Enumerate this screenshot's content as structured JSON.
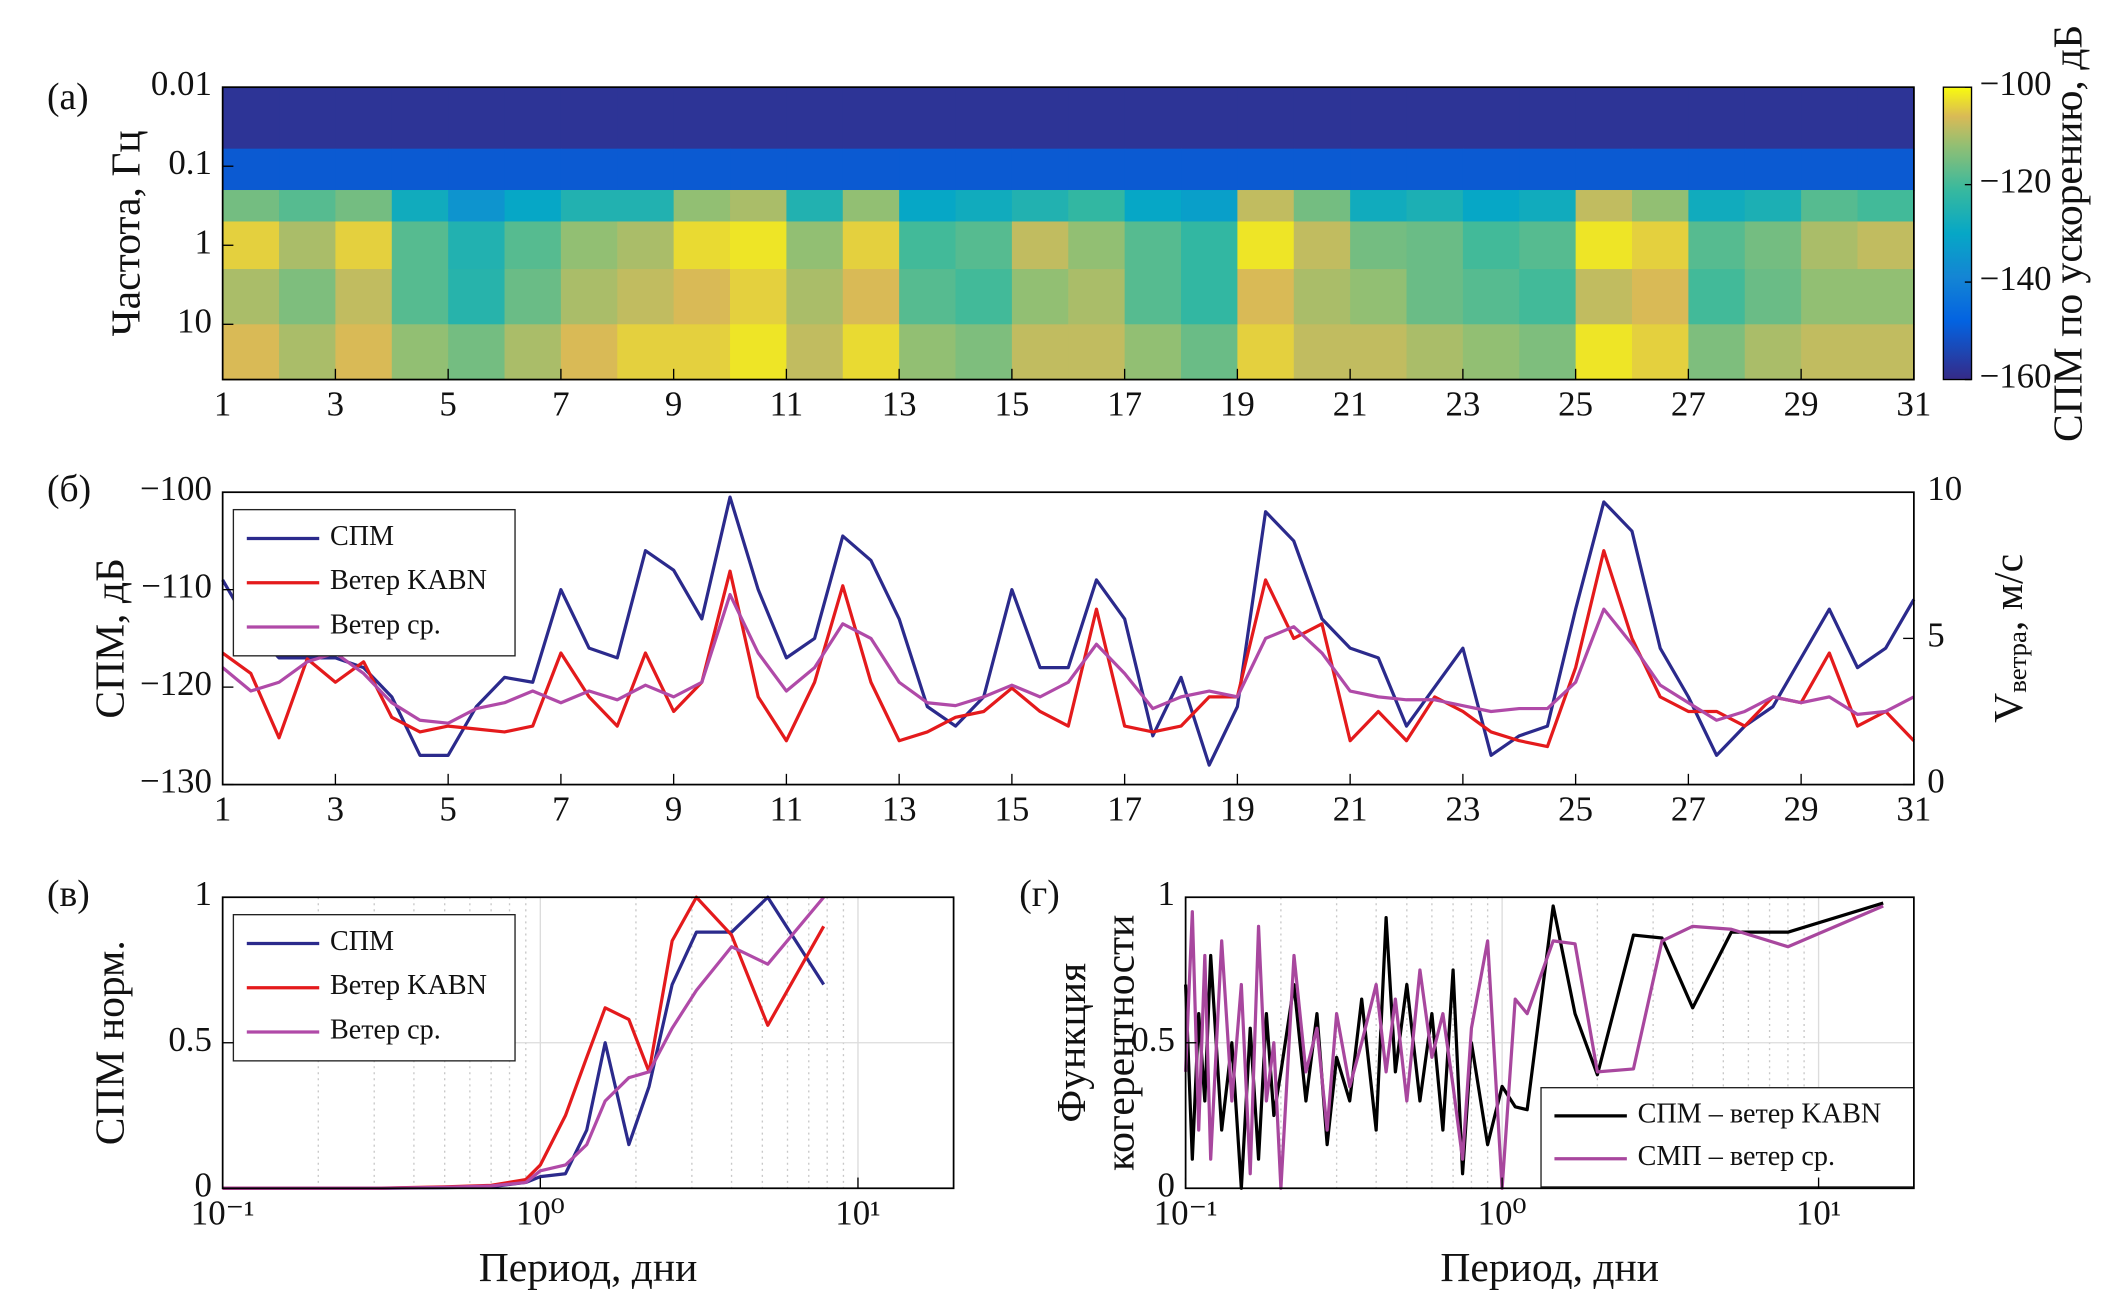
{
  "chart_data": [
    {
      "type": "heatmap",
      "panel_label": "(а)",
      "ylabel": "Частота, Гц",
      "x_edges": [
        1,
        2,
        3,
        4,
        5,
        6,
        7,
        8,
        9,
        10,
        11,
        12,
        13,
        14,
        15,
        16,
        17,
        18,
        19,
        20,
        21,
        22,
        23,
        24,
        25,
        26,
        27,
        28,
        29,
        30,
        31
      ],
      "xlim": [
        1,
        31
      ],
      "xticks": [
        1,
        3,
        5,
        7,
        9,
        11,
        13,
        15,
        17,
        19,
        21,
        23,
        25,
        27,
        29,
        31
      ],
      "y_edges": [
        0.01,
        0.06,
        0.2,
        0.5,
        2,
        10,
        50
      ],
      "ylim": [
        0.01,
        50
      ],
      "yticks": [
        0.01,
        0.1,
        1,
        10
      ],
      "yscale": "log",
      "y_direction": "reversed",
      "z": [
        [
          -158,
          -158,
          -158,
          -158,
          -158,
          -158,
          -158,
          -158,
          -158,
          -158,
          -158,
          -158,
          -158,
          -158,
          -158,
          -158,
          -158,
          -158,
          -158,
          -158,
          -158,
          -158,
          -158,
          -158,
          -158,
          -158,
          -158,
          -158,
          -158,
          -158
        ],
        [
          -150,
          -150,
          -150,
          -150,
          -150,
          -150,
          -150,
          -150,
          -150,
          -150,
          -150,
          -150,
          -150,
          -150,
          -150,
          -150,
          -150,
          -150,
          -150,
          -150,
          -150,
          -150,
          -150,
          -150,
          -150,
          -150,
          -150,
          -150,
          -150,
          -150
        ],
        [
          -115,
          -118,
          -115,
          -128,
          -135,
          -130,
          -125,
          -125,
          -112,
          -110,
          -125,
          -112,
          -130,
          -128,
          -125,
          -122,
          -130,
          -132,
          -108,
          -115,
          -128,
          -126,
          -130,
          -128,
          -108,
          -112,
          -128,
          -126,
          -118,
          -120
        ],
        [
          -104,
          -110,
          -104,
          -118,
          -125,
          -118,
          -112,
          -110,
          -103,
          -102,
          -112,
          -104,
          -120,
          -118,
          -108,
          -112,
          -118,
          -122,
          -102,
          -108,
          -115,
          -116,
          -120,
          -118,
          -102,
          -104,
          -118,
          -115,
          -110,
          -108
        ],
        [
          -110,
          -114,
          -108,
          -118,
          -124,
          -116,
          -110,
          -108,
          -106,
          -104,
          -110,
          -106,
          -118,
          -120,
          -112,
          -110,
          -118,
          -122,
          -106,
          -110,
          -112,
          -116,
          -118,
          -120,
          -108,
          -106,
          -120,
          -116,
          -112,
          -112
        ],
        [
          -106,
          -110,
          -106,
          -112,
          -115,
          -110,
          -106,
          -104,
          -104,
          -102,
          -108,
          -103,
          -112,
          -114,
          -108,
          -108,
          -112,
          -116,
          -104,
          -108,
          -108,
          -110,
          -112,
          -114,
          -102,
          -104,
          -114,
          -110,
          -108,
          -108
        ]
      ],
      "zlim": [
        -160,
        -100
      ],
      "zticks": [
        {
          "value": -100,
          "label": "−100"
        },
        {
          "value": -120,
          "label": "−120"
        },
        {
          "value": -140,
          "label": "−140"
        },
        {
          "value": -160,
          "label": "−160"
        }
      ],
      "colorbar_label": "СПМ по ускорению, дБ",
      "colormap": "parula"
    },
    {
      "type": "line",
      "panel_label": "(б)",
      "ylabel": "СПМ, дБ",
      "y2label": [
        "V",
        "ветра",
        ", м/с"
      ],
      "x": [
        1,
        1.5,
        2,
        2.5,
        3,
        3.5,
        4,
        4.5,
        5,
        5.5,
        6,
        6.5,
        7,
        7.5,
        8,
        8.5,
        9,
        9.5,
        10,
        10.5,
        11,
        11.5,
        12,
        12.5,
        13,
        13.5,
        14,
        14.5,
        15,
        15.5,
        16,
        16.5,
        17,
        17.5,
        18,
        18.5,
        19,
        19.5,
        20,
        20.5,
        21,
        21.5,
        22,
        22.5,
        23,
        23.5,
        24,
        24.5,
        25,
        25.5,
        26,
        26.5,
        27,
        27.5,
        28,
        28.5,
        29,
        29.5,
        30,
        30.5,
        31
      ],
      "xlim": [
        1,
        31
      ],
      "xticks": [
        1,
        3,
        5,
        7,
        9,
        11,
        13,
        15,
        17,
        19,
        21,
        23,
        25,
        27,
        29,
        31
      ],
      "ylim": [
        -130,
        -100
      ],
      "yticks": [
        {
          "value": -100,
          "label": "−100"
        },
        {
          "value": -110,
          "label": "−110"
        },
        {
          "value": -120,
          "label": "−120"
        },
        {
          "value": -130,
          "label": "−130"
        }
      ],
      "y2lim": [
        0,
        10
      ],
      "y2ticks": [
        0,
        5,
        10
      ],
      "legend": "upper left",
      "series": [
        {
          "name": "СПМ",
          "color": "#2b2a8c",
          "values": [
            -109,
            -114,
            -117,
            -117,
            -117,
            -118,
            -121,
            -127,
            -127,
            -122,
            -119,
            -119.5,
            -110,
            -116,
            -117,
            -106,
            -108,
            -113,
            -100.5,
            -110,
            -117,
            -115,
            -104.5,
            -107,
            -113,
            -122,
            -124,
            -121,
            -110,
            -118,
            -118,
            -109,
            -113,
            -125,
            -119,
            -128,
            -122,
            -102,
            -105,
            -113,
            -116,
            -117,
            -124,
            -120,
            -116,
            -127,
            -125,
            -124,
            -112,
            -101,
            -104,
            -116,
            -121,
            -127,
            -124,
            -122,
            -117,
            -112,
            -118,
            -116,
            -111
          ]
        },
        {
          "name": "Ветер KABN",
          "color": "#e41a1c",
          "axis": "y2",
          "values": [
            4.5,
            3.8,
            1.6,
            4.3,
            3.5,
            4.2,
            2.3,
            1.8,
            2.0,
            1.9,
            1.8,
            2.0,
            4.5,
            3.0,
            2.0,
            4.5,
            2.5,
            3.5,
            7.3,
            3.0,
            1.5,
            3.5,
            6.8,
            3.5,
            1.5,
            1.8,
            2.3,
            2.5,
            3.3,
            2.5,
            2.0,
            6.0,
            2.0,
            1.8,
            2.0,
            3.0,
            3.0,
            7.0,
            5.0,
            5.5,
            1.5,
            2.5,
            1.5,
            3.0,
            2.5,
            1.8,
            1.5,
            1.3,
            4.0,
            8.0,
            5.0,
            3.0,
            2.5,
            2.5,
            2.0,
            3.0,
            2.8,
            4.5,
            2.0,
            2.5,
            1.5
          ]
        },
        {
          "name": "Ветер ср.",
          "color": "#b04aa8",
          "axis": "y2",
          "values": [
            4.0,
            3.2,
            3.5,
            4.2,
            4.5,
            3.8,
            2.8,
            2.2,
            2.1,
            2.6,
            2.8,
            3.2,
            2.8,
            3.2,
            2.9,
            3.4,
            3.0,
            3.5,
            6.5,
            4.5,
            3.2,
            4.0,
            5.5,
            5.0,
            3.5,
            2.8,
            2.7,
            3.0,
            3.4,
            3.0,
            3.5,
            4.8,
            3.8,
            2.6,
            3.0,
            3.2,
            3.0,
            5.0,
            5.4,
            4.5,
            3.2,
            3.0,
            2.9,
            2.9,
            2.7,
            2.5,
            2.6,
            2.6,
            3.5,
            6.0,
            4.8,
            3.4,
            2.8,
            2.2,
            2.5,
            3.0,
            2.8,
            3.0,
            2.4,
            2.5,
            3.0
          ]
        }
      ]
    },
    {
      "type": "line",
      "panel_label": "(в)",
      "xlabel": "Период, дни",
      "ylabel": "СПМ норм.",
      "xscale": "log",
      "xlim": [
        0.1,
        20
      ],
      "xticks": [
        {
          "value": 0.1,
          "label": "10⁻¹"
        },
        {
          "value": 1,
          "label": "10⁰"
        },
        {
          "value": 10,
          "label": "10¹"
        }
      ],
      "ylim": [
        0,
        1
      ],
      "yticks": [
        0,
        0.5,
        1
      ],
      "grid": true,
      "legend": "upper left",
      "x": [
        0.1,
        0.2,
        0.3,
        0.5,
        0.7,
        0.9,
        1.0,
        1.2,
        1.4,
        1.6,
        1.9,
        2.2,
        2.6,
        3.1,
        4.0,
        5.2,
        7.8
      ],
      "series": [
        {
          "name": "СПМ",
          "color": "#2b2a8c",
          "values": [
            0,
            0,
            0,
            0.002,
            0.005,
            0.02,
            0.04,
            0.05,
            0.2,
            0.5,
            0.15,
            0.35,
            0.7,
            0.88,
            0.88,
            1.0,
            0.7
          ]
        },
        {
          "name": "Ветер KABN",
          "color": "#e41a1c",
          "values": [
            0,
            0,
            0,
            0.005,
            0.01,
            0.03,
            0.08,
            0.25,
            0.45,
            0.62,
            0.58,
            0.4,
            0.85,
            1.0,
            0.87,
            0.56,
            0.9
          ]
        },
        {
          "name": "Ветер ср.",
          "color": "#b04aa8",
          "values": [
            0,
            0,
            0,
            0.003,
            0.008,
            0.02,
            0.06,
            0.08,
            0.15,
            0.3,
            0.38,
            0.4,
            0.55,
            0.68,
            0.83,
            0.77,
            1.0
          ]
        }
      ]
    },
    {
      "type": "line",
      "panel_label": "(г)",
      "xlabel": "Период, дни",
      "ylabel": [
        "Функция",
        "когерентности"
      ],
      "xscale": "log",
      "xlim": [
        0.1,
        20
      ],
      "xticks": [
        {
          "value": 0.1,
          "label": "10⁻¹"
        },
        {
          "value": 1,
          "label": "10⁰"
        },
        {
          "value": 10,
          "label": "10¹"
        }
      ],
      "ylim": [
        0,
        1
      ],
      "yticks": [
        0,
        0.5,
        1
      ],
      "grid": true,
      "legend": "lower right",
      "x": [
        0.1,
        0.105,
        0.11,
        0.115,
        0.12,
        0.13,
        0.14,
        0.15,
        0.16,
        0.17,
        0.18,
        0.19,
        0.2,
        0.22,
        0.24,
        0.26,
        0.28,
        0.3,
        0.33,
        0.36,
        0.4,
        0.43,
        0.46,
        0.5,
        0.55,
        0.6,
        0.65,
        0.7,
        0.75,
        0.8,
        0.9,
        1.0,
        1.1,
        1.2,
        1.45,
        1.7,
        2.0,
        2.6,
        3.2,
        4.0,
        5.3,
        8.0,
        16.0
      ],
      "series": [
        {
          "name": "СПМ – ветер KABN",
          "color": "#000000",
          "values": [
            0.7,
            0.1,
            0.6,
            0.3,
            0.8,
            0.2,
            0.5,
            0.0,
            0.55,
            0.1,
            0.6,
            0.25,
            0.4,
            0.7,
            0.3,
            0.6,
            0.15,
            0.45,
            0.3,
            0.65,
            0.2,
            0.93,
            0.4,
            0.7,
            0.3,
            0.6,
            0.2,
            0.75,
            0.05,
            0.5,
            0.15,
            0.35,
            0.28,
            0.27,
            0.97,
            0.6,
            0.39,
            0.87,
            0.86,
            0.62,
            0.88,
            0.88,
            0.98
          ]
        },
        {
          "name": "СМП – ветер ср.",
          "color": "#a8479e",
          "values": [
            0.4,
            0.95,
            0.2,
            0.8,
            0.1,
            0.85,
            0.3,
            0.7,
            0.05,
            0.9,
            0.3,
            0.5,
            0.0,
            0.8,
            0.4,
            0.55,
            0.2,
            0.6,
            0.35,
            0.5,
            0.7,
            0.4,
            0.65,
            0.3,
            0.75,
            0.45,
            0.6,
            0.35,
            0.1,
            0.55,
            0.85,
            0.0,
            0.65,
            0.6,
            0.85,
            0.84,
            0.4,
            0.41,
            0.85,
            0.9,
            0.89,
            0.83,
            0.97
          ]
        }
      ]
    }
  ]
}
